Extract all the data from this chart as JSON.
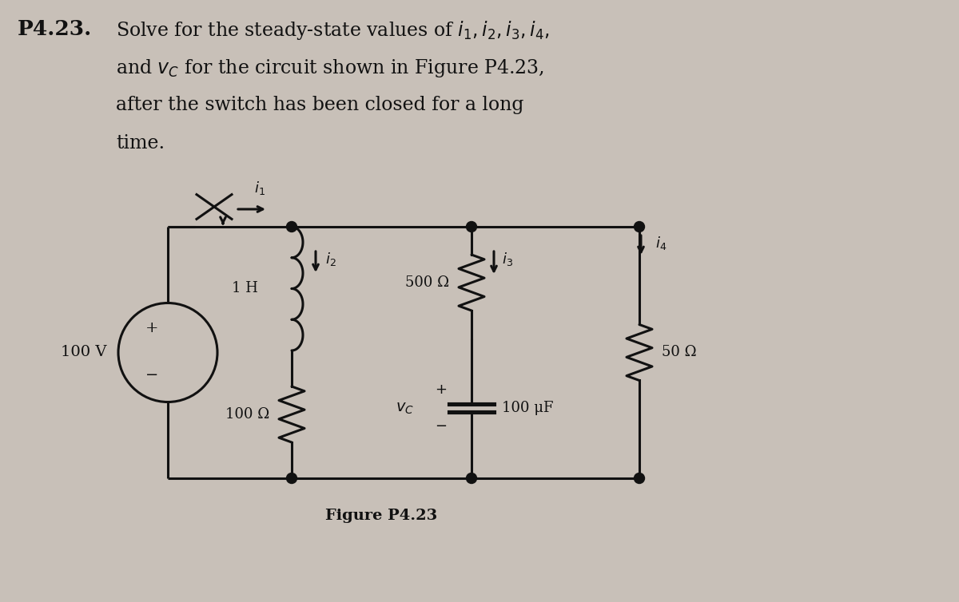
{
  "bg_color": "#c8c0b8",
  "text_color": "#111111",
  "fig_width": 12.0,
  "fig_height": 7.54,
  "voltage_label": "100 V",
  "inductor_label": "1 H",
  "r1_label": "100 Ω",
  "r2_label": "500 Ω",
  "r3_label": "50 Ω",
  "cap_label": "100 μF",
  "figure_label": "Figure P4.23"
}
